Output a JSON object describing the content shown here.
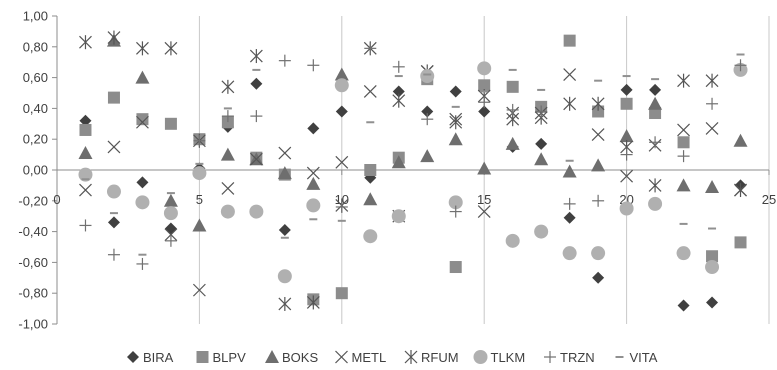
{
  "chart_data": {
    "type": "scatter",
    "title": "",
    "xlabel": "",
    "ylabel": "",
    "xlim": [
      0,
      25
    ],
    "ylim": [
      -1.0,
      1.0
    ],
    "x_ticks": [
      0,
      5,
      10,
      15,
      20,
      25
    ],
    "x_tick_labels": [
      "0",
      "5",
      "10",
      "15",
      "20",
      "25"
    ],
    "y_ticks": [
      1.0,
      0.8,
      0.6,
      0.4,
      0.2,
      0.0,
      -0.2,
      -0.4,
      -0.6,
      -0.8,
      -1.0
    ],
    "y_tick_labels": [
      "1,00",
      "0,80",
      "0,60",
      "0,40",
      "0,20",
      "0,00",
      "-0,20",
      "-0,40",
      "-0,60",
      "-0,80",
      "-1,00"
    ],
    "grid": "vertical",
    "legend_position": "bottom",
    "series": [
      {
        "name": "BIRA",
        "marker": "diamond",
        "color": "#404040",
        "x": [
          1,
          2,
          3,
          4,
          5,
          6,
          7,
          8,
          9,
          10,
          11,
          12,
          13,
          14,
          15,
          16,
          17,
          18,
          19,
          20,
          21,
          22,
          23,
          24
        ],
        "y": [
          0.32,
          -0.34,
          -0.08,
          -0.38,
          0.01,
          0.28,
          0.56,
          -0.39,
          0.27,
          0.38,
          -0.05,
          0.51,
          0.38,
          0.51,
          0.38,
          0.15,
          0.17,
          -0.31,
          -0.7,
          0.52,
          0.52,
          -0.88,
          -0.86,
          -0.1
        ]
      },
      {
        "name": "BLPV",
        "marker": "square",
        "color": "#8c8c8c",
        "x": [
          1,
          2,
          3,
          4,
          5,
          6,
          7,
          8,
          9,
          10,
          11,
          12,
          13,
          14,
          15,
          16,
          17,
          18,
          19,
          20,
          21,
          22,
          23,
          24
        ],
        "y": [
          0.26,
          0.47,
          0.33,
          0.3,
          0.2,
          0.31,
          0.08,
          -0.03,
          -0.84,
          -0.8,
          0.0,
          0.08,
          0.59,
          -0.63,
          0.55,
          0.54,
          0.41,
          0.84,
          0.38,
          0.43,
          0.37,
          0.18,
          -0.56,
          -0.47
        ]
      },
      {
        "name": "BOKS",
        "marker": "triangle",
        "color": "#6e6e6e",
        "x": [
          1,
          2,
          3,
          4,
          5,
          6,
          7,
          8,
          9,
          10,
          11,
          12,
          13,
          14,
          15,
          16,
          17,
          18,
          19,
          20,
          21,
          22,
          23,
          24
        ],
        "y": [
          0.11,
          0.84,
          0.6,
          -0.2,
          -0.36,
          0.1,
          0.07,
          -0.02,
          -0.09,
          0.62,
          -0.19,
          0.05,
          0.09,
          0.2,
          0.01,
          0.17,
          0.07,
          -0.01,
          0.03,
          0.22,
          0.43,
          -0.1,
          -0.11,
          0.19
        ]
      },
      {
        "name": "METL",
        "marker": "x",
        "color": "#555555",
        "x": [
          1,
          2,
          3,
          4,
          5,
          6,
          7,
          8,
          9,
          10,
          11,
          12,
          13,
          14,
          15,
          16,
          17,
          18,
          19,
          20,
          21,
          22,
          23,
          24
        ],
        "y": [
          -0.13,
          0.15,
          0.31,
          -0.42,
          -0.78,
          -0.12,
          0.07,
          0.11,
          -0.02,
          0.05,
          0.51,
          -0.3,
          0.64,
          0.33,
          -0.27,
          0.37,
          0.37,
          0.62,
          0.23,
          -0.04,
          0.16,
          0.26,
          0.27,
          -0.13
        ]
      },
      {
        "name": "RFUM",
        "marker": "asterisk",
        "color": "#555555",
        "x": [
          1,
          2,
          3,
          4,
          5,
          6,
          7,
          8,
          9,
          10,
          11,
          12,
          13,
          14,
          15,
          16,
          17,
          18,
          19,
          20,
          21,
          22,
          23,
          24
        ],
        "y": [
          0.83,
          0.86,
          0.79,
          0.79,
          0.19,
          0.54,
          0.74,
          -0.87,
          -0.86,
          -0.23,
          0.79,
          0.45,
          0.64,
          0.31,
          0.48,
          0.33,
          0.34,
          0.43,
          0.43,
          0.15,
          -0.1,
          0.58,
          0.58,
          -0.13
        ]
      },
      {
        "name": "TLKM",
        "marker": "circle",
        "color": "#b0b0b0",
        "x": [
          1,
          2,
          3,
          4,
          5,
          6,
          7,
          8,
          9,
          10,
          11,
          12,
          13,
          14,
          15,
          16,
          17,
          18,
          19,
          20,
          21,
          22,
          23,
          24
        ],
        "y": [
          -0.03,
          -0.14,
          -0.21,
          -0.28,
          -0.02,
          -0.27,
          -0.27,
          -0.69,
          -0.23,
          0.55,
          -0.43,
          -0.3,
          0.61,
          -0.21,
          0.66,
          -0.46,
          -0.4,
          -0.54,
          -0.54,
          -0.25,
          -0.22,
          -0.54,
          -0.63,
          0.65
        ]
      },
      {
        "name": "TRZN",
        "marker": "plus",
        "color": "#707070",
        "x": [
          1,
          2,
          3,
          4,
          5,
          6,
          7,
          8,
          9,
          10,
          11,
          12,
          13,
          14,
          15,
          16,
          17,
          18,
          19,
          20,
          21,
          22,
          23,
          24
        ],
        "y": [
          -0.36,
          -0.55,
          -0.61,
          -0.46,
          0.19,
          0.35,
          0.35,
          0.71,
          0.68,
          -0.24,
          0.79,
          0.67,
          0.33,
          -0.27,
          0.44,
          0.39,
          0.38,
          -0.22,
          -0.2,
          0.1,
          0.18,
          0.09,
          0.43,
          0.68
        ]
      },
      {
        "name": "VITA",
        "marker": "dash",
        "color": "#909090",
        "x": [
          1,
          2,
          3,
          4,
          5,
          6,
          7,
          8,
          9,
          10,
          11,
          12,
          13,
          14,
          15,
          16,
          17,
          18,
          19,
          20,
          21,
          22,
          23,
          24
        ],
        "y": [
          -0.06,
          -0.28,
          -0.55,
          -0.15,
          0.04,
          0.4,
          0.65,
          -0.44,
          -0.32,
          -0.33,
          0.31,
          0.61,
          0.62,
          0.41,
          0.51,
          0.65,
          0.52,
          0.06,
          0.58,
          0.61,
          0.59,
          -0.35,
          -0.38,
          0.75
        ]
      }
    ]
  }
}
